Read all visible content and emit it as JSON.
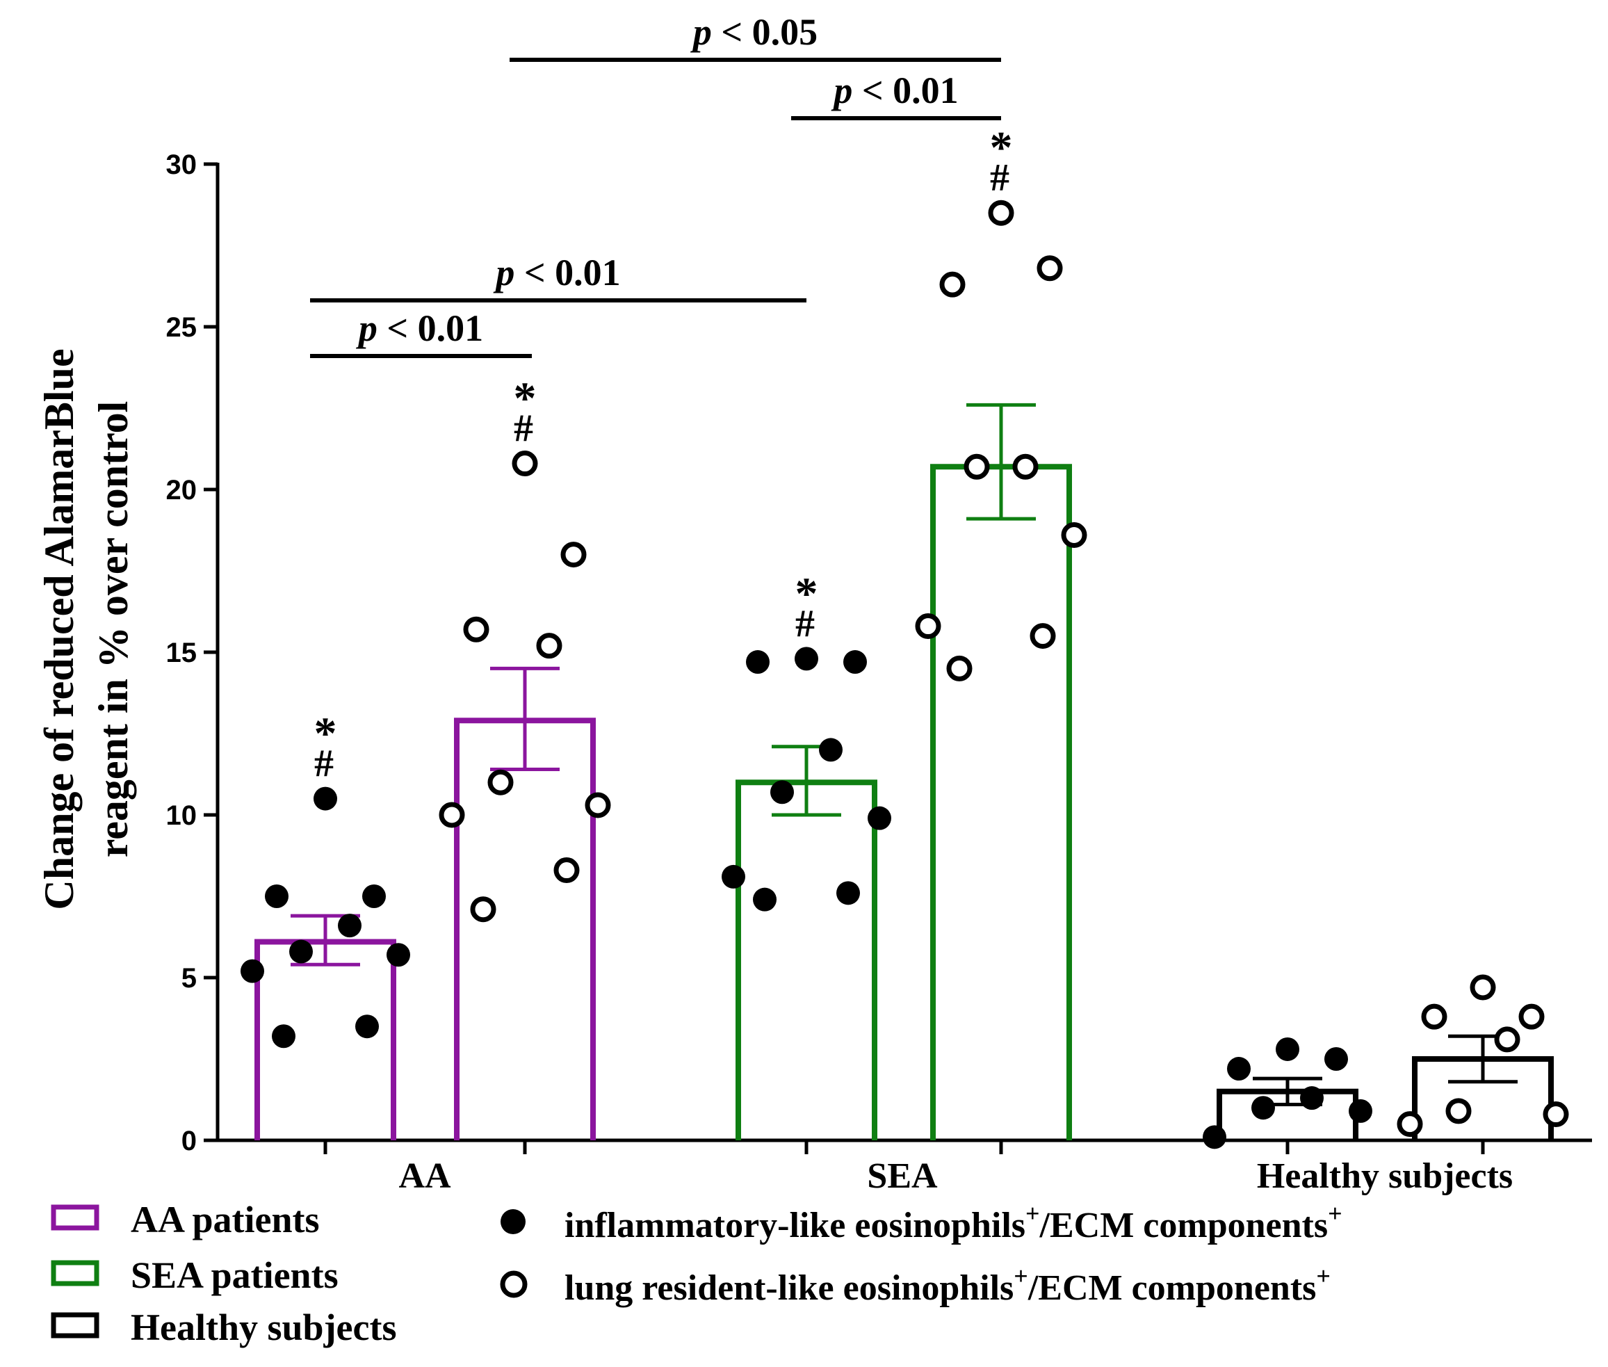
{
  "chart_data": {
    "type": "bar",
    "ylabel_lines": [
      "Change of reduced AlamarBlue",
      "reagent in % over control"
    ],
    "ylim": [
      0,
      30
    ],
    "yticks": [
      0,
      5,
      10,
      15,
      20,
      25,
      30
    ],
    "categories": [
      "AA",
      "SEA",
      "Healthy subjects"
    ],
    "colors": {
      "AA": "#8b159e",
      "SEA": "#0f7f12",
      "Healthy": "#000000",
      "black": "#000000"
    },
    "bars": [
      {
        "group": "AA",
        "cellType": "inflammatory",
        "mean": 6.1,
        "sem_low": 5.4,
        "sem_high": 6.9,
        "points": [
          10.5,
          7.5,
          7.5,
          6.6,
          5.8,
          5.7,
          5.2,
          3.5,
          3.2
        ],
        "stars": "*",
        "hash": "#"
      },
      {
        "group": "AA",
        "cellType": "resident",
        "mean": 12.9,
        "sem_low": 11.4,
        "sem_high": 14.5,
        "points": [
          20.8,
          18.0,
          15.7,
          15.2,
          11.0,
          10.3,
          10.0,
          8.3,
          7.1
        ],
        "stars": "*",
        "hash": "#"
      },
      {
        "group": "SEA",
        "cellType": "inflammatory",
        "mean": 11.0,
        "sem_low": 10.0,
        "sem_high": 12.1,
        "points": [
          14.8,
          14.7,
          14.7,
          12.0,
          10.7,
          9.9,
          8.1,
          7.6,
          7.4
        ],
        "stars": "*",
        "hash": "#"
      },
      {
        "group": "SEA",
        "cellType": "resident",
        "mean": 20.7,
        "sem_low": 19.1,
        "sem_high": 22.6,
        "points": [
          28.5,
          26.8,
          26.3,
          20.7,
          20.7,
          18.6,
          15.8,
          15.5,
          14.5
        ],
        "stars": "*",
        "hash": "#"
      },
      {
        "group": "Healthy",
        "cellType": "inflammatory",
        "mean": 1.5,
        "sem_low": 1.1,
        "sem_high": 1.9,
        "points": [
          2.8,
          2.5,
          2.2,
          1.3,
          1.0,
          0.9,
          0.1
        ],
        "stars": "",
        "hash": ""
      },
      {
        "group": "Healthy",
        "cellType": "resident",
        "mean": 2.5,
        "sem_low": 1.8,
        "sem_high": 3.2,
        "points": [
          4.7,
          3.8,
          3.8,
          3.1,
          0.9,
          0.8,
          0.5
        ],
        "stars": "",
        "hash": ""
      }
    ],
    "significance": [
      {
        "from_bar": 1,
        "to_bar": 3,
        "label_p": "p",
        "label_rest": " < 0.05"
      },
      {
        "from_bar": 2,
        "to_bar": 3,
        "label_p": "p",
        "label_rest": " < 0.01"
      },
      {
        "from_bar": 0,
        "to_bar": 2,
        "label_p": "p",
        "label_rest": " < 0.01"
      },
      {
        "from_bar": 0,
        "to_bar": 1,
        "label_p": "p",
        "label_rest": " < 0.01"
      }
    ],
    "legend": {
      "groups": [
        {
          "label": "AA patients",
          "color": "#8b159e"
        },
        {
          "label": "SEA patients",
          "color": "#0f7f12"
        },
        {
          "label": "Healthy subjects",
          "color": "#000000"
        }
      ],
      "markers": [
        {
          "filled": true,
          "label": "inflammatory-like eosinophils",
          "sup1": "+",
          "mid": "/ECM components",
          "sup2": "+"
        },
        {
          "filled": false,
          "label": "lung resident-like eosinophils",
          "sup1": "+",
          "mid": "/ECM components",
          "sup2": "+"
        }
      ]
    }
  }
}
